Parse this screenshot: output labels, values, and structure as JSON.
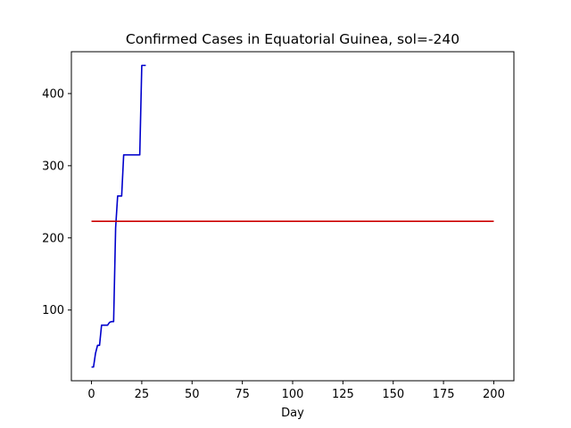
{
  "chart_data": {
    "type": "line",
    "title": "Confirmed Cases in Equatorial Guinea, sol=-240",
    "xlabel": "Day",
    "ylabel": "",
    "xlim": [
      -10,
      210
    ],
    "ylim": [
      2,
      458
    ],
    "xticks": [
      0,
      25,
      50,
      75,
      100,
      125,
      150,
      175,
      200
    ],
    "yticks": [
      100,
      200,
      300,
      400
    ],
    "grid": false,
    "legend": "none",
    "series": [
      {
        "color": "#0000cc",
        "x": [
          0,
          1,
          2,
          3,
          4,
          5,
          6,
          7,
          8,
          9,
          10,
          11,
          12,
          13,
          14,
          15,
          16,
          17,
          18,
          19,
          20,
          21,
          22,
          23,
          24,
          25,
          26,
          27
        ],
        "y": [
          21,
          21,
          40,
          51,
          51,
          79,
          79,
          79,
          79,
          83,
          84,
          84,
          214,
          258,
          258,
          258,
          315,
          315,
          315,
          315,
          315,
          315,
          315,
          315,
          315,
          439,
          439,
          439
        ]
      },
      {
        "color": "#cc0000",
        "x": [
          0,
          200
        ],
        "y": [
          223,
          223
        ]
      }
    ]
  }
}
